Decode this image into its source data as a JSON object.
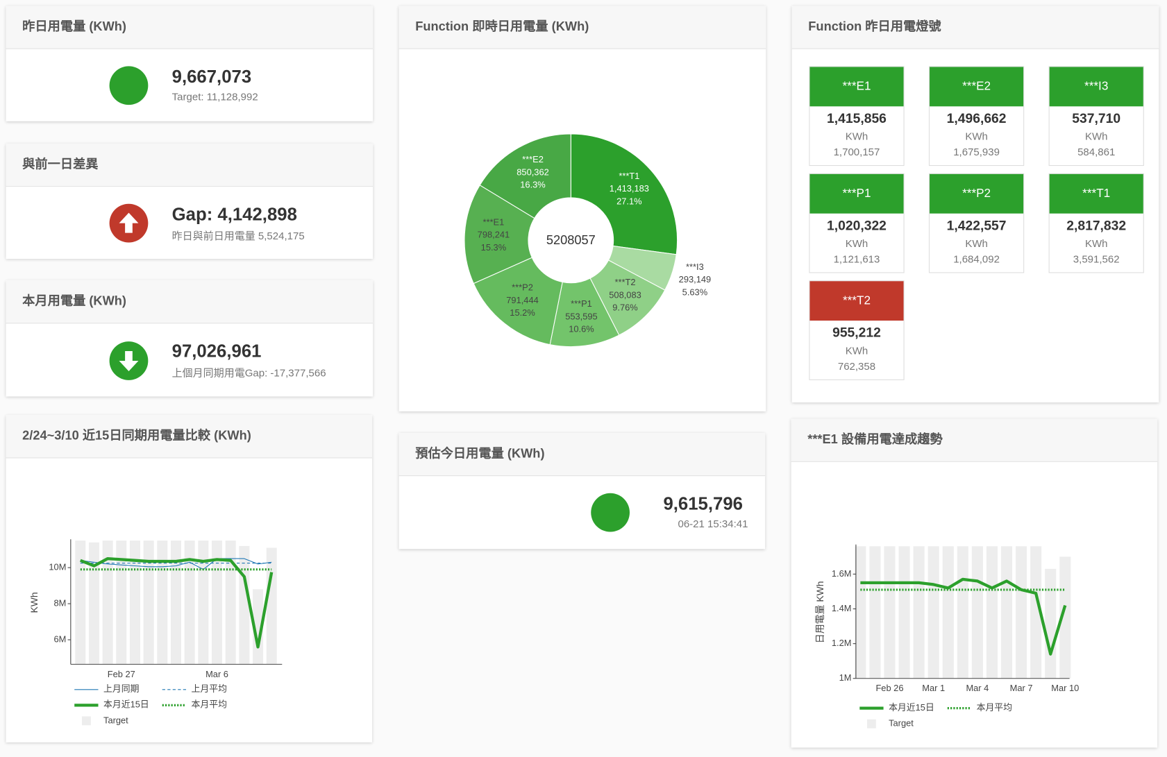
{
  "kpis": [
    {
      "title": "昨日用電量 (KWh)",
      "value": "9,667,073",
      "sub": "Target: 11,128,992",
      "icon": "circle",
      "color": "#2ca02c"
    },
    {
      "title": "與前一日差異",
      "value": "Gap: 4,142,898",
      "sub": "昨日與前日用電量 5,524,175",
      "icon": "up",
      "color": "#c0392b"
    },
    {
      "title": "本月用電量 (KWh)",
      "value": "97,026,961",
      "sub": "上個月同期用電Gap: -17,377,566",
      "icon": "down",
      "color": "#2ca02c"
    },
    {
      "title": "預估今日用電量 (KWh)",
      "value": "9,615,796",
      "sub": "06-21 15:34:41",
      "icon": "circle",
      "color": "#2ca02c"
    }
  ],
  "lights": {
    "title": "Function 昨日用電燈號",
    "unit": "KWh",
    "items": [
      {
        "name": "***E1",
        "value": "1,415,856",
        "target": "1,700,157",
        "color": "#2ca02c"
      },
      {
        "name": "***E2",
        "value": "1,496,662",
        "target": "1,675,939",
        "color": "#2ca02c"
      },
      {
        "name": "***I3",
        "value": "537,710",
        "target": "584,861",
        "color": "#2ca02c"
      },
      {
        "name": "***P1",
        "value": "1,020,322",
        "target": "1,121,613",
        "color": "#2ca02c"
      },
      {
        "name": "***P2",
        "value": "1,422,557",
        "target": "1,684,092",
        "color": "#2ca02c"
      },
      {
        "name": "***T1",
        "value": "2,817,832",
        "target": "3,591,562",
        "color": "#2ca02c"
      },
      {
        "name": "***T2",
        "value": "955,212",
        "target": "762,358",
        "color": "#c0392b"
      }
    ]
  },
  "chart_data": [
    {
      "type": "pie",
      "title": "Function 即時日用電量 (KWh)",
      "hole": 0.4,
      "center_value": 5208057,
      "labels": [
        "***T1",
        "***I3",
        "***T2",
        "***P1",
        "***P2",
        "***E1",
        "***E2"
      ],
      "values": [
        1413183,
        293149,
        508083,
        553595,
        791444,
        798241,
        850362
      ],
      "value_labels": [
        "1,413,183",
        "293,149",
        "508,083",
        "553,595",
        "791,444",
        "798,241",
        "850,362"
      ],
      "percent_labels": [
        "27.1%",
        "5.63%",
        "9.76%",
        "10.6%",
        "15.2%",
        "15.3%",
        "16.3%"
      ],
      "colors": [
        "#2ca02c",
        "#a9dba2",
        "#8fd087",
        "#73c46b",
        "#65bb5e",
        "#57b051",
        "#48a845"
      ],
      "text_colors": [
        "#ffffff",
        "#444444",
        "#444444",
        "#444444",
        "#444444",
        "#444444",
        "#ffffff"
      ]
    },
    {
      "type": "line",
      "title": "2/24~3/10 近15日同期用電量比較 (KWh)",
      "y_label": "KWh",
      "categories": [
        null,
        null,
        null,
        "Feb 27",
        null,
        null,
        null,
        null,
        null,
        null,
        "Mar 6",
        null,
        null,
        null,
        null
      ],
      "ylim": [
        4640000,
        11570000
      ],
      "yticks": [
        {
          "value": 6000000,
          "label": "6M"
        },
        {
          "value": 8000000,
          "label": "8M"
        },
        {
          "value": 10000000,
          "label": "10M"
        }
      ],
      "series": [
        {
          "name": "上月同期",
          "color": "#1f77b4",
          "width": 1,
          "dash": "solid",
          "values": [
            10400000,
            10300000,
            10200000,
            10150000,
            10100000,
            10050000,
            10050000,
            10100000,
            10300000,
            9900000,
            10500000,
            10500000,
            10500000,
            10200000,
            10300000
          ]
        },
        {
          "name": "上月平均",
          "color": "#1f77b4",
          "width": 1,
          "dash": "dashed",
          "values": [
            10250000,
            10250000,
            10250000,
            10250000,
            10250000,
            10250000,
            10250000,
            10250000,
            10250000,
            10250000,
            10250000,
            10250000,
            10250000,
            10250000,
            10250000
          ]
        },
        {
          "name": "本月近15日",
          "color": "#2ca02c",
          "width": 4,
          "dash": "solid",
          "values": [
            10400000,
            10100000,
            10500000,
            10450000,
            10400000,
            10350000,
            10350000,
            10350000,
            10450000,
            10350000,
            10450000,
            10400000,
            9500000,
            5600000,
            9750000
          ]
        },
        {
          "name": "本月平均",
          "color": "#2ca02c",
          "width": 3,
          "dash": "dotted",
          "values": [
            9900000,
            9900000,
            9900000,
            9900000,
            9900000,
            9900000,
            9900000,
            9900000,
            9900000,
            9900000,
            9900000,
            9900000,
            9900000,
            9900000,
            9900000
          ]
        },
        {
          "name": "Target",
          "type": "bar",
          "color": "#ededed",
          "values": [
            11500000,
            11400000,
            11500000,
            11500000,
            11500000,
            11500000,
            11500000,
            11500000,
            11500000,
            11500000,
            11500000,
            11500000,
            11200000,
            8800000,
            11100000
          ]
        }
      ]
    },
    {
      "type": "line",
      "title": "***E1 設備用電達成趨勢",
      "y_label": "日用電量 KWh",
      "categories": [
        null,
        null,
        "Feb 26",
        null,
        null,
        "Mar 1",
        null,
        null,
        "Mar 4",
        null,
        null,
        "Mar 7",
        null,
        null,
        "Mar 10"
      ],
      "ylim": [
        1000000,
        1770000
      ],
      "yticks": [
        {
          "value": 1000000,
          "label": "1M"
        },
        {
          "value": 1200000,
          "label": "1.2M"
        },
        {
          "value": 1400000,
          "label": "1.4M"
        },
        {
          "value": 1600000,
          "label": "1.6M"
        }
      ],
      "series": [
        {
          "name": "本月近15日",
          "color": "#2ca02c",
          "width": 4,
          "dash": "solid",
          "values": [
            1550000,
            1550000,
            1550000,
            1550000,
            1550000,
            1540000,
            1520000,
            1570000,
            1560000,
            1520000,
            1560000,
            1510000,
            1490000,
            1140000,
            1420000
          ]
        },
        {
          "name": "本月平均",
          "color": "#2ca02c",
          "width": 3,
          "dash": "dotted",
          "values": [
            1510000,
            1510000,
            1510000,
            1510000,
            1510000,
            1510000,
            1510000,
            1510000,
            1510000,
            1510000,
            1510000,
            1510000,
            1510000,
            1510000,
            1510000
          ]
        },
        {
          "name": "Target",
          "type": "bar",
          "color": "#ededed",
          "values": [
            1760000,
            1760000,
            1760000,
            1760000,
            1760000,
            1760000,
            1760000,
            1760000,
            1760000,
            1760000,
            1760000,
            1760000,
            1760000,
            1630000,
            1700000
          ]
        }
      ]
    }
  ]
}
